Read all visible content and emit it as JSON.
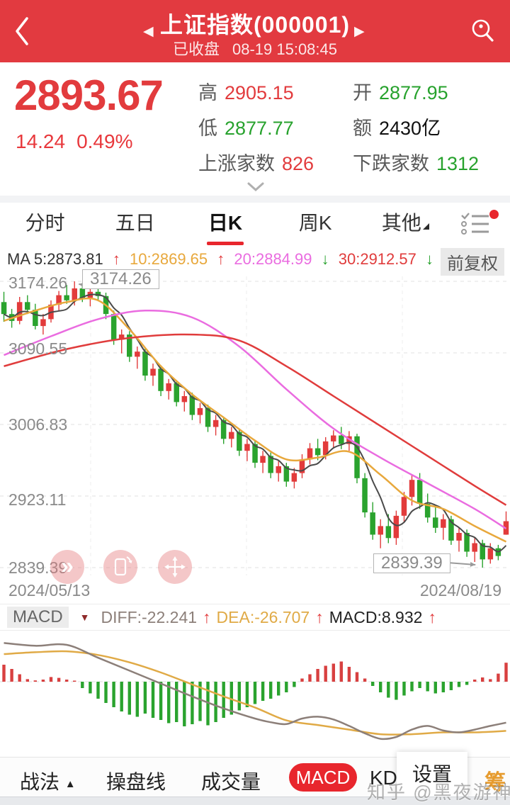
{
  "header": {
    "title": "上证指数(000001)",
    "status": "已收盘",
    "time": "08-19 15:08:45",
    "prev_arrow": "◀",
    "next_arrow": "▶"
  },
  "quote": {
    "price": "2893.67",
    "change": "14.24",
    "change_pct": "0.49%",
    "high_label": "高",
    "high": "2905.15",
    "low_label": "低",
    "low": "2877.77",
    "open_label": "开",
    "open": "2877.95",
    "amount_label": "额",
    "amount": "2430亿",
    "rising_label": "上涨家数",
    "rising": "826",
    "falling_label": "下跌家数",
    "falling": "1312"
  },
  "tabs": {
    "items": [
      "分时",
      "五日",
      "日K",
      "周K",
      "其他"
    ],
    "active": "日K"
  },
  "ma_row": {
    "ma5": "MA 5:2873.81",
    "ma10": "10:2869.65",
    "ma20": "20:2884.99",
    "ma30": "30:2912.57",
    "up_arrow": "↑",
    "down_arrow": "↓",
    "adjust": "前复权"
  },
  "chart_data": [
    {
      "type": "candlestick",
      "title": "上证指数 日K",
      "grid_labels": [
        "3174.26",
        "3090.55",
        "3006.83",
        "2923.11",
        "2839.39"
      ],
      "grid_values": [
        3174.26,
        3090.55,
        3006.83,
        2923.11,
        2839.39
      ],
      "x_start": "2024/05/13",
      "x_end": "2024/08/19",
      "annotation_high": "3174.26",
      "annotation_low": "2839.39",
      "colors": {
        "up": "#e23b3b",
        "down": "#2aa32e",
        "ma5": "#4a4a4a",
        "ma10": "#e8a83c",
        "ma20": "#ea6ce0",
        "ma30": "#e03c3c",
        "grid": "#e0e0e0",
        "ann": "#9a9a9a"
      },
      "candles": [
        [
          3150,
          3162,
          3127,
          3136
        ],
        [
          3136,
          3142,
          3120,
          3128
        ],
        [
          3128,
          3156,
          3124,
          3150
        ],
        [
          3150,
          3158,
          3136,
          3141
        ],
        [
          3141,
          3148,
          3118,
          3122
        ],
        [
          3122,
          3136,
          3112,
          3130
        ],
        [
          3130,
          3152,
          3126,
          3147
        ],
        [
          3147,
          3163,
          3140,
          3158
        ],
        [
          3158,
          3170,
          3148,
          3152
        ],
        [
          3152,
          3174.26,
          3146,
          3166
        ],
        [
          3166,
          3172,
          3150,
          3155
        ],
        [
          3155,
          3168,
          3145,
          3162
        ],
        [
          3162,
          3171,
          3152,
          3157
        ],
        [
          3157,
          3161,
          3130,
          3136
        ],
        [
          3136,
          3140,
          3100,
          3106
        ],
        [
          3106,
          3118,
          3090,
          3112
        ],
        [
          3112,
          3116,
          3080,
          3086
        ],
        [
          3086,
          3098,
          3072,
          3092
        ],
        [
          3092,
          3096,
          3058,
          3064
        ],
        [
          3064,
          3078,
          3052,
          3072
        ],
        [
          3072,
          3076,
          3040,
          3046
        ],
        [
          3046,
          3060,
          3036,
          3055
        ],
        [
          3055,
          3058,
          3028,
          3033
        ],
        [
          3033,
          3046,
          3022,
          3040
        ],
        [
          3040,
          3044,
          3012,
          3018
        ],
        [
          3018,
          3032,
          3008,
          3026
        ],
        [
          3026,
          3030,
          2998,
          3004
        ],
        [
          3004,
          3018,
          2994,
          3012
        ],
        [
          3012,
          3016,
          2984,
          2990
        ],
        [
          2990,
          3004,
          2980,
          2998
        ],
        [
          2998,
          3002,
          2970,
          2976
        ],
        [
          2976,
          2990,
          2964,
          2984
        ],
        [
          2984,
          2988,
          2956,
          2962
        ],
        [
          2962,
          2976,
          2950,
          2970
        ],
        [
          2970,
          2974,
          2944,
          2950
        ],
        [
          2950,
          2964,
          2940,
          2958
        ],
        [
          2958,
          2962,
          2934,
          2940
        ],
        [
          2940,
          2956,
          2932,
          2950
        ],
        [
          2950,
          2972,
          2944,
          2966
        ],
        [
          2966,
          2985,
          2960,
          2979
        ],
        [
          2979,
          2990,
          2965,
          2971
        ],
        [
          2971,
          2992,
          2966,
          2987
        ],
        [
          2987,
          3000,
          2980,
          2994
        ],
        [
          2994,
          3004,
          2978,
          2984
        ],
        [
          2984,
          2999,
          2976,
          2993
        ],
        [
          2993,
          2996,
          2938,
          2944
        ],
        [
          2944,
          2950,
          2898,
          2904
        ],
        [
          2904,
          2916,
          2872,
          2878
        ],
        [
          2878,
          2896,
          2862,
          2888
        ],
        [
          2888,
          2902,
          2868,
          2874
        ],
        [
          2874,
          2906,
          2866,
          2900
        ],
        [
          2900,
          2928,
          2892,
          2922
        ],
        [
          2922,
          2948,
          2912,
          2942
        ],
        [
          2942,
          2950,
          2908,
          2914
        ],
        [
          2914,
          2926,
          2892,
          2898
        ],
        [
          2898,
          2912,
          2880,
          2886
        ],
        [
          2886,
          2902,
          2872,
          2896
        ],
        [
          2896,
          2900,
          2866,
          2871
        ],
        [
          2871,
          2886,
          2858,
          2880
        ],
        [
          2880,
          2884,
          2852,
          2858
        ],
        [
          2858,
          2874,
          2846,
          2868
        ],
        [
          2868,
          2872,
          2839.39,
          2849
        ],
        [
          2849,
          2868,
          2844,
          2862
        ],
        [
          2862,
          2866,
          2848,
          2853
        ],
        [
          2877.95,
          2905.15,
          2877.77,
          2893.67
        ]
      ],
      "ma10_anchors": [
        [
          0,
          3128
        ],
        [
          4,
          3140
        ],
        [
          8,
          3150
        ],
        [
          12,
          3152
        ],
        [
          16,
          3118
        ],
        [
          20,
          3075
        ],
        [
          24,
          3042
        ],
        [
          28,
          3015
        ],
        [
          32,
          2988
        ],
        [
          36,
          2966
        ],
        [
          40,
          2968
        ],
        [
          44,
          2975
        ],
        [
          48,
          2948
        ],
        [
          52,
          2918
        ],
        [
          56,
          2908
        ],
        [
          60,
          2888
        ],
        [
          64,
          2869.65
        ]
      ],
      "ma20_anchors": [
        [
          0,
          3088
        ],
        [
          6,
          3110
        ],
        [
          12,
          3130
        ],
        [
          18,
          3140
        ],
        [
          24,
          3132
        ],
        [
          30,
          3098
        ],
        [
          36,
          3048
        ],
        [
          42,
          3002
        ],
        [
          48,
          2968
        ],
        [
          54,
          2938
        ],
        [
          60,
          2908
        ],
        [
          64,
          2884.99
        ]
      ],
      "ma30_anchors": [
        [
          0,
          3075
        ],
        [
          8,
          3095
        ],
        [
          16,
          3108
        ],
        [
          24,
          3112
        ],
        [
          30,
          3105
        ],
        [
          36,
          3075
        ],
        [
          42,
          3040
        ],
        [
          48,
          3005
        ],
        [
          54,
          2970
        ],
        [
          60,
          2935
        ],
        [
          64,
          2912.57
        ]
      ]
    },
    {
      "type": "bar",
      "title": "MACD",
      "colors": {
        "pos": "#d84040",
        "neg": "#2aa32e",
        "diff": "#8c7f79",
        "dea": "#e0aa46"
      },
      "bars": [
        8,
        6,
        3.5,
        1.2,
        0.6,
        1.0,
        2.2,
        1.8,
        1.0,
        0.5,
        -3,
        -5.5,
        -8,
        -10,
        -12,
        -14,
        -15.5,
        -16.5,
        -15,
        -17,
        -18,
        -19.5,
        -19,
        -21,
        -20,
        -18.5,
        -20.5,
        -19,
        -17,
        -15.5,
        -13.5,
        -12,
        -10.5,
        -9,
        -8,
        -6.5,
        -5,
        -2.5,
        1.5,
        3.5,
        6,
        7.5,
        8.5,
        9.5,
        7,
        4.5,
        1.5,
        -2,
        -5,
        -7.5,
        -8.5,
        -6.5,
        -4.5,
        -3,
        -4.5,
        -5.5,
        -5,
        -4,
        -2.5,
        -1.5,
        1.0,
        2.0,
        1.2,
        3.8,
        8.932
      ],
      "diff_anchors": [
        [
          0,
          21
        ],
        [
          4,
          19.5
        ],
        [
          8,
          20
        ],
        [
          12,
          13
        ],
        [
          16,
          6
        ],
        [
          20,
          -1
        ],
        [
          24,
          -8
        ],
        [
          28,
          -14.5
        ],
        [
          32,
          -20
        ],
        [
          34,
          -22
        ],
        [
          36,
          -23
        ],
        [
          38,
          -20
        ],
        [
          40,
          -19
        ],
        [
          42,
          -20.5
        ],
        [
          44,
          -24
        ],
        [
          46,
          -28
        ],
        [
          48,
          -31
        ],
        [
          50,
          -30
        ],
        [
          52,
          -26
        ],
        [
          54,
          -24
        ],
        [
          56,
          -26.5
        ],
        [
          58,
          -27.5
        ],
        [
          60,
          -26
        ],
        [
          62,
          -24
        ],
        [
          64,
          -22.241
        ]
      ],
      "dea_anchors": [
        [
          0,
          15
        ],
        [
          4,
          16
        ],
        [
          8,
          16.5
        ],
        [
          12,
          14.5
        ],
        [
          16,
          10.5
        ],
        [
          20,
          5
        ],
        [
          24,
          -1.5
        ],
        [
          28,
          -8
        ],
        [
          32,
          -14
        ],
        [
          36,
          -21
        ],
        [
          40,
          -23.5
        ],
        [
          44,
          -26
        ],
        [
          48,
          -28.5
        ],
        [
          52,
          -28.5
        ],
        [
          56,
          -27.5
        ],
        [
          60,
          -27.5
        ],
        [
          64,
          -26.707
        ]
      ]
    }
  ],
  "macd_row": {
    "name": "MACD",
    "diff": "DIFF:-22.241",
    "dea": "DEA:-26.707",
    "macd": "MACD:8.932",
    "up_arrow": "↑"
  },
  "toolbar": {
    "strategy": "战法",
    "opline": "操盘线",
    "volume": "成交量",
    "macd": "MACD",
    "kd": "KD",
    "settings": "设置",
    "chips": "筹"
  },
  "watermark": "知乎 @黑夜游神"
}
